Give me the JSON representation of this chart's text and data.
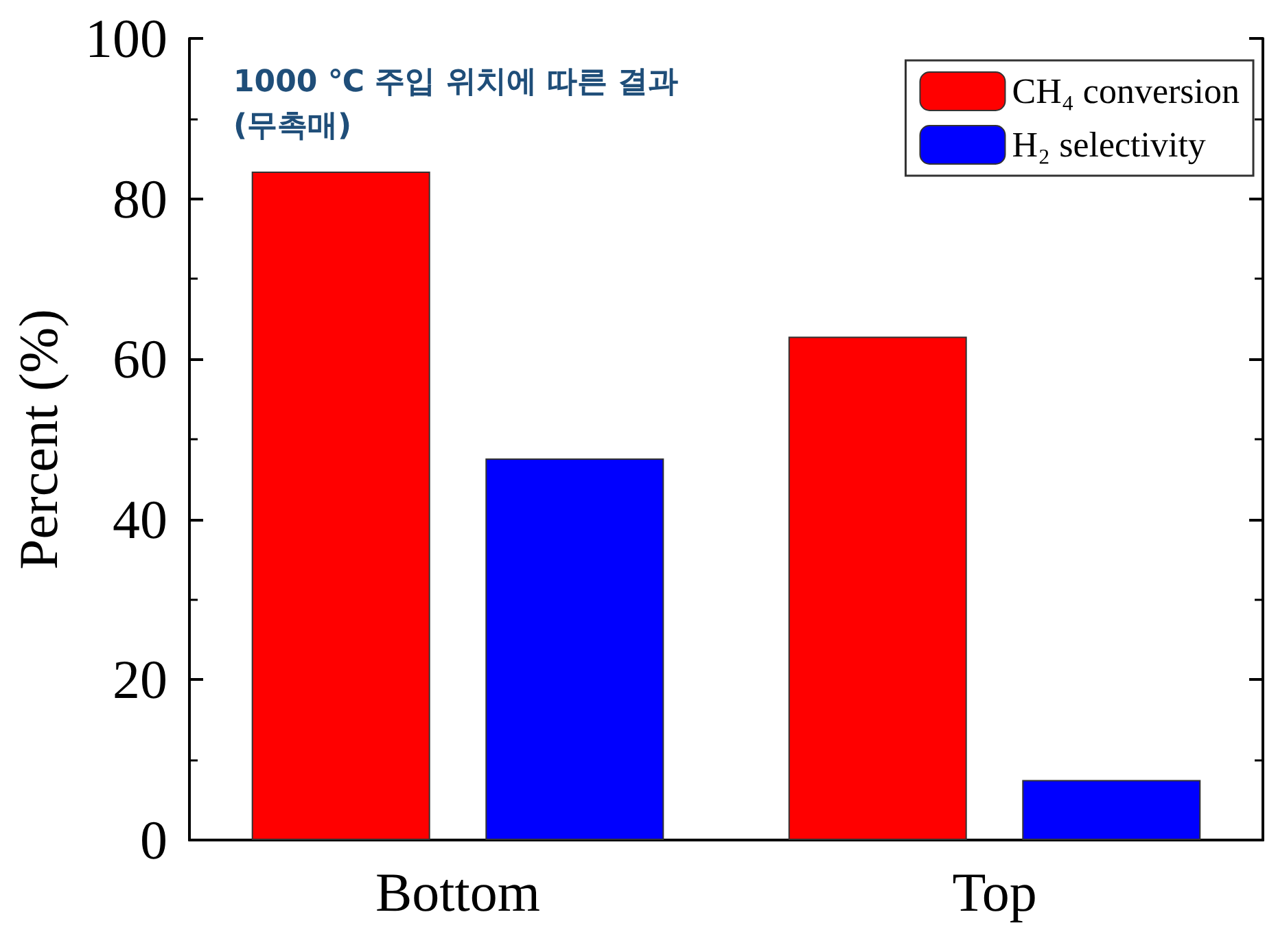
{
  "chart_data": {
    "type": "bar",
    "ylabel": "Percent (%)",
    "annotations": [
      "1000 ℃ 주입 위치에 따른 결과\n(무촉매)"
    ],
    "categories": [
      "Bottom",
      "Top"
    ],
    "series": [
      {
        "name": "CH₄ conversion",
        "color": "#ff0000",
        "values": [
          83.4,
          62.8
        ]
      },
      {
        "name": "H₂ selectivity",
        "color": "#0000ff",
        "values": [
          47.6,
          7.5
        ]
      }
    ],
    "ylim": [
      0,
      100
    ],
    "yticks": [
      0,
      20,
      40,
      60,
      80,
      100
    ],
    "grid": false,
    "legend": "top right"
  }
}
